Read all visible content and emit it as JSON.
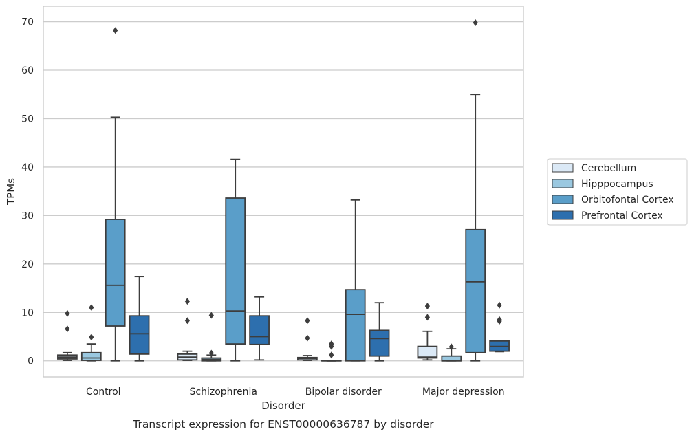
{
  "chart_data": {
    "type": "boxplot",
    "caption": "Transcript expression for ENST00000636787 by disorder",
    "xlabel": "Disorder",
    "ylabel": "TPMs",
    "ylim": [
      -3.3,
      73.2
    ],
    "yticks": [
      0,
      10,
      20,
      30,
      40,
      50,
      60,
      70
    ],
    "grid": true,
    "legend_position": "right",
    "categories": [
      "Control",
      "Schizophrenia",
      "Bipolar disorder",
      "Major depression"
    ],
    "series": [
      {
        "name": "Cerebellum",
        "color": "#dbe9f6",
        "boxes": [
          {
            "whislo": 0.1,
            "q1": 0.4,
            "med": 0.8,
            "q3": 1.2,
            "whishi": 1.7,
            "fliers": [
              6.6,
              9.8
            ]
          },
          {
            "whislo": 0.1,
            "q1": 0.2,
            "med": 0.8,
            "q3": 1.4,
            "whishi": 2.0,
            "fliers": [
              8.3,
              12.3
            ]
          },
          {
            "whislo": 0.1,
            "q1": 0.2,
            "med": 0.5,
            "q3": 0.7,
            "whishi": 1.1,
            "fliers": [
              4.7,
              8.3
            ]
          },
          {
            "whislo": 0.2,
            "q1": 0.6,
            "med": 0.8,
            "q3": 3.0,
            "whishi": 6.1,
            "fliers": [
              9.0,
              11.3
            ]
          }
        ]
      },
      {
        "name": "Hipppocampus",
        "color": "#9ac8e0",
        "boxes": [
          {
            "whislo": 0.0,
            "q1": 0.1,
            "med": 0.6,
            "q3": 1.7,
            "whishi": 3.5,
            "fliers": [
              4.9,
              11.0
            ]
          },
          {
            "whislo": 0.0,
            "q1": 0.0,
            "med": 0.3,
            "q3": 0.6,
            "whishi": 1.2,
            "fliers": [
              1.6,
              9.4
            ]
          },
          {
            "whislo": 0.0,
            "q1": 0.0,
            "med": 0.0,
            "q3": 0.0,
            "whishi": 0.0,
            "fliers": [
              1.2,
              3.0,
              3.5
            ]
          },
          {
            "whislo": 0.0,
            "q1": 0.0,
            "med": 0.0,
            "q3": 1.0,
            "whishi": 2.5,
            "fliers": [
              2.9
            ]
          }
        ]
      },
      {
        "name": "Orbitofontal Cortex",
        "color": "#5a9ec9",
        "boxes": [
          {
            "whislo": 0.0,
            "q1": 7.2,
            "med": 15.6,
            "q3": 29.2,
            "whishi": 50.3,
            "fliers": [
              68.2
            ]
          },
          {
            "whislo": 0.0,
            "q1": 3.5,
            "med": 10.3,
            "q3": 33.6,
            "whishi": 41.6,
            "fliers": []
          },
          {
            "whislo": 0.0,
            "q1": 0.0,
            "med": 9.6,
            "q3": 14.7,
            "whishi": 33.2,
            "fliers": []
          },
          {
            "whislo": 0.0,
            "q1": 1.7,
            "med": 16.3,
            "q3": 27.1,
            "whishi": 55.0,
            "fliers": [
              69.8
            ]
          }
        ]
      },
      {
        "name": "Prefrontal Cortex",
        "color": "#2d6fae",
        "boxes": [
          {
            "whislo": 0.0,
            "q1": 1.4,
            "med": 5.6,
            "q3": 9.3,
            "whishi": 17.4,
            "fliers": []
          },
          {
            "whislo": 0.2,
            "q1": 3.4,
            "med": 5.0,
            "q3": 9.3,
            "whishi": 13.2,
            "fliers": []
          },
          {
            "whislo": 0.0,
            "q1": 1.0,
            "med": 4.6,
            "q3": 6.3,
            "whishi": 12.0,
            "fliers": []
          },
          {
            "whislo": 1.9,
            "q1": 2.0,
            "med": 3.0,
            "q3": 4.1,
            "whishi": 4.1,
            "fliers": [
              8.2,
              8.5,
              11.5
            ]
          }
        ]
      }
    ]
  }
}
